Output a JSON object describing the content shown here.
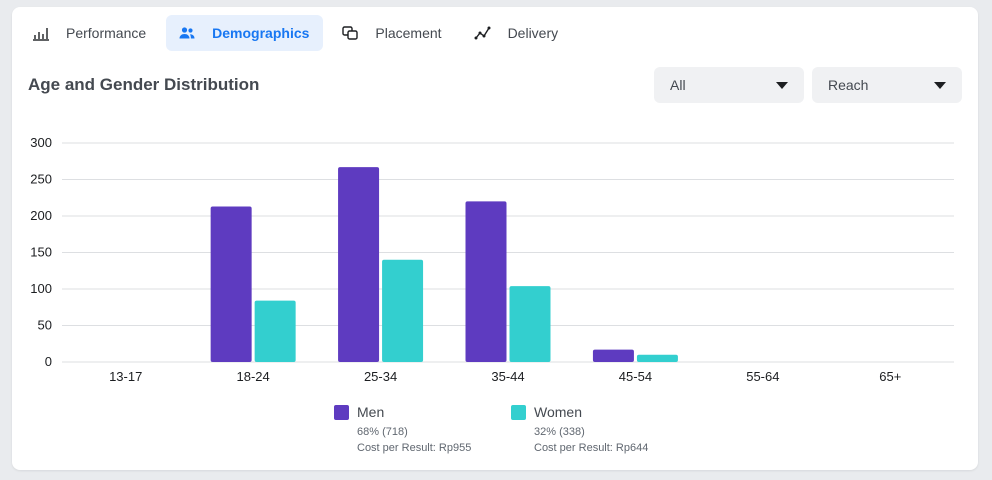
{
  "tabs": [
    {
      "label": "Performance",
      "icon": "bar-chart-icon",
      "active": false
    },
    {
      "label": "Demographics",
      "icon": "people-icon",
      "active": true
    },
    {
      "label": "Placement",
      "icon": "placement-icon",
      "active": false
    },
    {
      "label": "Delivery",
      "icon": "delivery-icon",
      "active": false
    }
  ],
  "section_title": "Age and Gender Distribution",
  "filters": {
    "audience": "All",
    "metric": "Reach"
  },
  "colors": {
    "men": "#5e3bc0",
    "women": "#33cfcf",
    "grid": "#dddfe2",
    "active_tab": "#1877f2"
  },
  "legend": [
    {
      "name": "Men",
      "share": "68% (718)",
      "cost": "Cost per Result: Rp955"
    },
    {
      "name": "Women",
      "share": "32% (338)",
      "cost": "Cost per Result: Rp644"
    }
  ],
  "chart_data": {
    "type": "bar",
    "categories": [
      "13-17",
      "18-24",
      "25-34",
      "35-44",
      "45-54",
      "55-64",
      "65+"
    ],
    "series": [
      {
        "name": "Men",
        "values": [
          0,
          213,
          267,
          220,
          17,
          0,
          0
        ]
      },
      {
        "name": "Women",
        "values": [
          0,
          84,
          140,
          104,
          10,
          0,
          0
        ]
      }
    ],
    "ylim": [
      0,
      300
    ],
    "yticks": [
      0,
      50,
      100,
      150,
      200,
      250,
      300
    ],
    "grid": true,
    "legend_position": "bottom"
  }
}
